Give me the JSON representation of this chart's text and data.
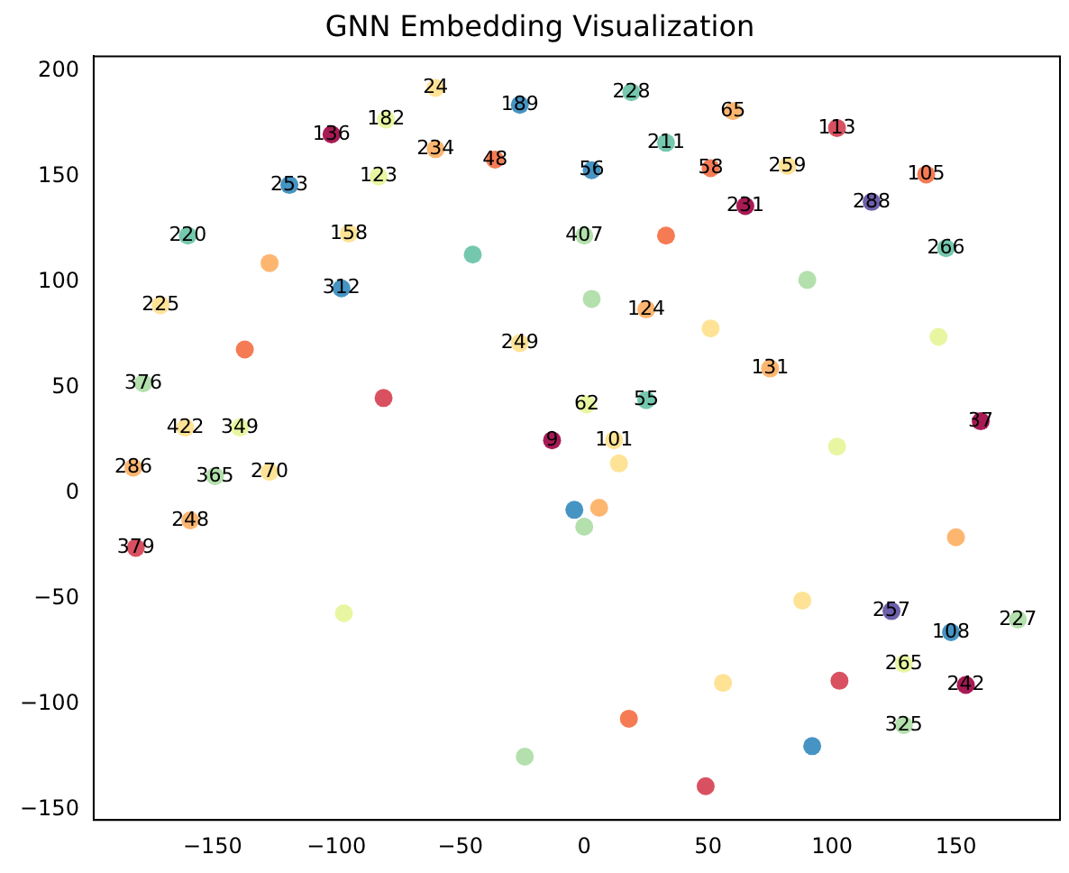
{
  "chart_data": {
    "type": "scatter",
    "title": "GNN Embedding Visualization",
    "x": [
      -60,
      -80,
      -26,
      19,
      60,
      102,
      -102,
      -60,
      -36,
      33,
      51,
      82,
      138,
      -83,
      -119,
      3,
      65,
      116,
      -160,
      -95,
      0,
      33,
      146,
      -127,
      -45,
      -98,
      3,
      90,
      -171,
      25,
      51,
      75,
      -26,
      -137,
      143,
      -178,
      25,
      1,
      -81,
      160,
      -161,
      -139,
      -13,
      12,
      -182,
      -149,
      -127,
      102,
      14,
      -159,
      -181,
      -4,
      6,
      0,
      150,
      -97,
      88,
      124,
      148,
      175,
      129,
      103,
      154,
      56,
      18,
      129,
      92,
      -24,
      49
    ],
    "values": [
      192,
      177,
      184,
      190,
      181,
      173,
      170,
      163,
      158,
      166,
      154,
      155,
      151,
      150,
      146,
      153,
      136,
      138,
      122,
      123,
      122,
      122,
      116,
      109,
      113,
      97,
      92,
      101,
      89,
      87,
      78,
      59,
      71,
      68,
      74,
      52,
      44,
      42,
      45,
      34,
      31,
      31,
      25,
      25,
      12,
      8,
      10,
      22,
      14,
      -13,
      -26,
      -8,
      -7,
      -16,
      -21,
      -57,
      -51,
      -56,
      -66,
      -60,
      -81,
      -89,
      -91,
      -90,
      -107,
      -110,
      -120,
      -125,
      -139
    ],
    "colors": [
      "#fee08b",
      "#e6f598",
      "#3288bd",
      "#66c2a5",
      "#fdae61",
      "#d53e4f",
      "#9e0142",
      "#fdae61",
      "#f46d43",
      "#66c2a5",
      "#f46d43",
      "#fee08b",
      "#f46d43",
      "#e6f598",
      "#3288bd",
      "#3288bd",
      "#9e0142",
      "#5e4fa2",
      "#66c2a5",
      "#fee08b",
      "#abdda4",
      "#f46d43",
      "#66c2a5",
      "#fdae61",
      "#66c2a5",
      "#3288bd",
      "#abdda4",
      "#abdda4",
      "#fee08b",
      "#fdae61",
      "#fee08b",
      "#fdae61",
      "#fee08b",
      "#f46d43",
      "#e6f598",
      "#abdda4",
      "#66c2a5",
      "#e6f598",
      "#d53e4f",
      "#9e0142",
      "#fee08b",
      "#e6f598",
      "#9e0142",
      "#fee08b",
      "#fdae61",
      "#abdda4",
      "#fee08b",
      "#e6f598",
      "#fee08b",
      "#fdae61",
      "#d53e4f",
      "#3288bd",
      "#fdae61",
      "#abdda4",
      "#fdae61",
      "#e6f598",
      "#fee08b",
      "#5e4fa2",
      "#3288bd",
      "#abdda4",
      "#e6f598",
      "#d53e4f",
      "#9e0142",
      "#fee08b",
      "#f46d43",
      "#abdda4",
      "#3288bd",
      "#abdda4",
      "#d53e4f"
    ],
    "annotations": [
      {
        "text": "24",
        "x": -60,
        "y": 192
      },
      {
        "text": "182",
        "x": -80,
        "y": 177
      },
      {
        "text": "189",
        "x": -26,
        "y": 184
      },
      {
        "text": "228",
        "x": 19,
        "y": 190
      },
      {
        "text": "65",
        "x": 60,
        "y": 181
      },
      {
        "text": "113",
        "x": 102,
        "y": 173
      },
      {
        "text": "136",
        "x": -102,
        "y": 170
      },
      {
        "text": "234",
        "x": -60,
        "y": 163
      },
      {
        "text": "48",
        "x": -36,
        "y": 158
      },
      {
        "text": "211",
        "x": 33,
        "y": 166
      },
      {
        "text": "58",
        "x": 51,
        "y": 154
      },
      {
        "text": "259",
        "x": 82,
        "y": 155
      },
      {
        "text": "105",
        "x": 138,
        "y": 151
      },
      {
        "text": "123",
        "x": -83,
        "y": 150
      },
      {
        "text": "253",
        "x": -119,
        "y": 146
      },
      {
        "text": "56",
        "x": 3,
        "y": 153
      },
      {
        "text": "231",
        "x": 65,
        "y": 136
      },
      {
        "text": "288",
        "x": 116,
        "y": 138
      },
      {
        "text": "220",
        "x": -160,
        "y": 122
      },
      {
        "text": "158",
        "x": -95,
        "y": 123
      },
      {
        "text": "407",
        "x": 0,
        "y": 122
      },
      {
        "text": "266",
        "x": 146,
        "y": 116
      },
      {
        "text": "312",
        "x": -98,
        "y": 97
      },
      {
        "text": "225",
        "x": -171,
        "y": 89
      },
      {
        "text": "124",
        "x": 25,
        "y": 87
      },
      {
        "text": "131",
        "x": 75,
        "y": 59
      },
      {
        "text": "249",
        "x": -26,
        "y": 71
      },
      {
        "text": "376",
        "x": -178,
        "y": 52
      },
      {
        "text": "55",
        "x": 25,
        "y": 44
      },
      {
        "text": "62",
        "x": 1,
        "y": 42
      },
      {
        "text": "37",
        "x": 160,
        "y": 34
      },
      {
        "text": "422",
        "x": -161,
        "y": 31
      },
      {
        "text": "349",
        "x": -139,
        "y": 31
      },
      {
        "text": "9",
        "x": -13,
        "y": 25
      },
      {
        "text": "101",
        "x": 12,
        "y": 25
      },
      {
        "text": "286",
        "x": -182,
        "y": 12
      },
      {
        "text": "365",
        "x": -149,
        "y": 8
      },
      {
        "text": "270",
        "x": -127,
        "y": 10
      },
      {
        "text": "248",
        "x": -159,
        "y": -13
      },
      {
        "text": "379",
        "x": -181,
        "y": -26
      },
      {
        "text": "257",
        "x": 124,
        "y": -56
      },
      {
        "text": "108",
        "x": 148,
        "y": -66
      },
      {
        "text": "227",
        "x": 175,
        "y": -60
      },
      {
        "text": "265",
        "x": 129,
        "y": -81
      },
      {
        "text": "242",
        "x": 154,
        "y": -91
      },
      {
        "text": "325",
        "x": 129,
        "y": -110
      }
    ],
    "xlim": [
      -198,
      192
    ],
    "ylim": [
      -155,
      207
    ],
    "xticks": [
      {
        "value": -150,
        "label": "−150"
      },
      {
        "value": -100,
        "label": "−100"
      },
      {
        "value": -50,
        "label": "−50"
      },
      0,
      50,
      100,
      150
    ],
    "yticks": [
      {
        "value": -150,
        "label": "−150"
      },
      {
        "value": -100,
        "label": "−100"
      },
      {
        "value": -50,
        "label": "−50"
      },
      0,
      50,
      100,
      150,
      200
    ],
    "marker": "circle",
    "grid": false,
    "legend": false
  }
}
